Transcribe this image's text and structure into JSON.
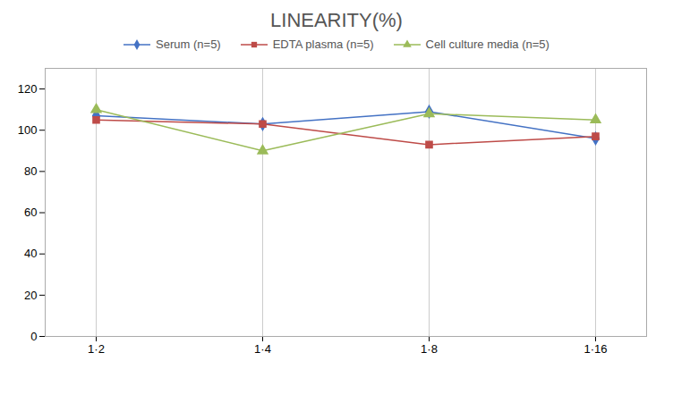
{
  "chart_data": {
    "type": "line",
    "title": "LINEARITY(%)",
    "categories": [
      "1·2",
      "1·4",
      "1·8",
      "1·16"
    ],
    "series": [
      {
        "name": "Serum (n=5)",
        "color": "#4472C4",
        "marker": "diamond",
        "values": [
          107,
          103,
          109,
          96
        ]
      },
      {
        "name": "EDTA plasma (n=5)",
        "color": "#BE4B48",
        "marker": "square",
        "values": [
          105,
          103,
          93,
          97
        ]
      },
      {
        "name": "Cell culture media (n=5)",
        "color": "#9BBB59",
        "marker": "triangle",
        "values": [
          110,
          90,
          108,
          105
        ]
      }
    ],
    "ylim": [
      0,
      130
    ],
    "yticks": [
      0,
      20,
      40,
      60,
      80,
      100,
      120
    ],
    "grid": "x",
    "legend": "top"
  }
}
